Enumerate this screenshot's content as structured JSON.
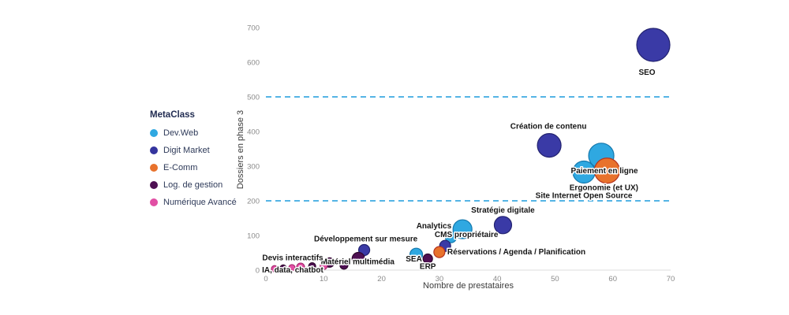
{
  "chart_data": {
    "type": "scatter",
    "title": "",
    "xlabel": "Nombre de prestataires",
    "ylabel": "Dossiers en phase 3",
    "xlim": [
      0,
      70
    ],
    "ylim": [
      0,
      700
    ],
    "x_ticks": [
      0,
      10,
      20,
      30,
      40,
      50,
      60,
      70
    ],
    "y_ticks": [
      0,
      100,
      200,
      300,
      400,
      500,
      600,
      700
    ],
    "grid": false,
    "reference_lines": {
      "color": "#55B4E5",
      "values": [
        200,
        500
      ]
    },
    "legend": {
      "title": "MetaClass",
      "position": "left",
      "items": [
        {
          "label": "Dev.Web",
          "color": "#2FA8E1"
        },
        {
          "label": "Digit Market",
          "color": "#34349E"
        },
        {
          "label": "E-Comm",
          "color": "#E8722C"
        },
        {
          "label": "Log. de gestion",
          "color": "#4E1053"
        },
        {
          "label": "Numérique Avancé",
          "color": "#E14FA4"
        }
      ]
    },
    "series": [
      {
        "name": "Dev.Web",
        "color": "#2FA8E1",
        "stroke": "#1478AD",
        "points": [
          {
            "label": "Paiement en ligne",
            "x": 58,
            "y": 330,
            "r": 16,
            "anchor": "middle",
            "dx": 4,
            "dy": 22
          },
          {
            "label": "Site Internet Open Source",
            "x": 55,
            "y": 283,
            "r": 14,
            "anchor": "middle",
            "dx": 0,
            "dy": 33
          },
          {
            "label": "Analytics",
            "x": 34,
            "y": 118,
            "r": 12,
            "anchor": "end",
            "dx": -14,
            "dy": -1
          },
          {
            "label": "",
            "x": 32,
            "y": 95,
            "r": 7
          },
          {
            "label": "SEA",
            "x": 26,
            "y": 45,
            "r": 8,
            "anchor": "middle",
            "dx": -3,
            "dy": 9
          }
        ]
      },
      {
        "name": "Digit Market",
        "color": "#3A3AA6",
        "stroke": "#232370",
        "points": [
          {
            "label": "SEO",
            "x": 67,
            "y": 650,
            "r": 21,
            "anchor": "middle",
            "dx": -8,
            "dy": 38
          },
          {
            "label": "Création de contenu",
            "x": 49,
            "y": 360,
            "r": 15,
            "anchor": "middle",
            "dx": -1,
            "dy": -21
          },
          {
            "label": "Stratégie digitale",
            "x": 41,
            "y": 130,
            "r": 11,
            "anchor": "middle",
            "dx": 0,
            "dy": -16
          },
          {
            "label": "CMS propriétaire",
            "x": 31,
            "y": 70,
            "r": 7,
            "anchor": "middle",
            "dx": 27,
            "dy": -11
          },
          {
            "label": "Développement sur mesure",
            "x": 17,
            "y": 58,
            "r": 7,
            "anchor": "middle",
            "dx": 2,
            "dy": -11
          }
        ]
      },
      {
        "name": "E-Comm",
        "color": "#E8722C",
        "stroke": "#B5341F",
        "points": [
          {
            "label": "Ergonomie (et UX)",
            "x": 59,
            "y": 287,
            "r": 16,
            "anchor": "middle",
            "dx": -4,
            "dy": 25
          },
          {
            "label": "Réservations / Agenda / Planification",
            "x": 30,
            "y": 52,
            "r": 7,
            "anchor": "start",
            "dx": 10,
            "dy": 3
          }
        ]
      },
      {
        "name": "Log. de gestion",
        "color": "#4E1053",
        "stroke": "#30082F",
        "points": [
          {
            "label": "Matériel multimédia",
            "x": 16,
            "y": 33,
            "r": 8,
            "anchor": "middle",
            "dx": -1,
            "dy": 7
          },
          {
            "label": "ERP",
            "x": 28,
            "y": 33,
            "r": 6,
            "anchor": "middle",
            "dx": 0,
            "dy": 13
          },
          {
            "label": "Devis interactifs",
            "x": 11,
            "y": 22,
            "r": 6,
            "anchor": "end",
            "dx": -8,
            "dy": -3
          },
          {
            "label": "",
            "x": 3,
            "y": 6,
            "r": 4
          },
          {
            "label": "",
            "x": 8,
            "y": 11,
            "r": 4.5
          },
          {
            "label": "",
            "x": 13.5,
            "y": 14,
            "r": 5
          }
        ]
      },
      {
        "name": "Numérique Avancé",
        "color": "#E14FA4",
        "stroke": "#A92C72",
        "points": [
          {
            "label": "IA, data, chatbot",
            "x": 6,
            "y": 9,
            "r": 5,
            "anchor": "middle",
            "dx": -10,
            "dy": 7
          },
          {
            "label": "",
            "x": 1.5,
            "y": 4,
            "r": 4
          },
          {
            "label": "",
            "x": 4.5,
            "y": 7,
            "r": 4
          },
          {
            "label": "",
            "x": 10,
            "y": 12,
            "r": 4.5
          }
        ]
      }
    ]
  }
}
